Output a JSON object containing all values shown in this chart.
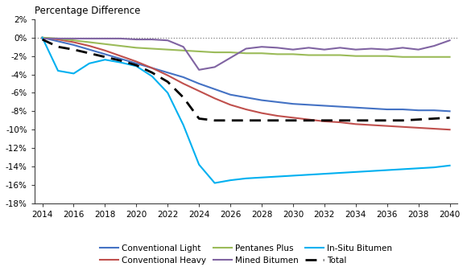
{
  "title": "Percentage Difference",
  "years": [
    2014,
    2015,
    2016,
    2017,
    2018,
    2019,
    2020,
    2021,
    2022,
    2023,
    2024,
    2025,
    2026,
    2027,
    2028,
    2029,
    2030,
    2031,
    2032,
    2033,
    2034,
    2035,
    2036,
    2037,
    2038,
    2039,
    2040
  ],
  "conventional_light": [
    0,
    -0.4,
    -0.8,
    -1.3,
    -1.8,
    -2.3,
    -2.8,
    -3.3,
    -3.8,
    -4.3,
    -5.0,
    -5.6,
    -6.2,
    -6.5,
    -6.8,
    -7.0,
    -7.2,
    -7.3,
    -7.4,
    -7.5,
    -7.6,
    -7.7,
    -7.8,
    -7.8,
    -7.9,
    -7.9,
    -8.0
  ],
  "conventional_heavy": [
    0,
    -0.2,
    -0.5,
    -0.9,
    -1.4,
    -2.0,
    -2.6,
    -3.3,
    -4.1,
    -5.0,
    -5.8,
    -6.6,
    -7.3,
    -7.8,
    -8.2,
    -8.5,
    -8.7,
    -8.9,
    -9.1,
    -9.2,
    -9.4,
    -9.5,
    -9.6,
    -9.7,
    -9.8,
    -9.9,
    -10.0
  ],
  "pentanes_plus": [
    0,
    -0.1,
    -0.3,
    -0.5,
    -0.7,
    -0.9,
    -1.1,
    -1.2,
    -1.3,
    -1.4,
    -1.5,
    -1.6,
    -1.6,
    -1.7,
    -1.7,
    -1.8,
    -1.8,
    -1.9,
    -1.9,
    -1.9,
    -2.0,
    -2.0,
    -2.0,
    -2.1,
    -2.1,
    -2.1,
    -2.1
  ],
  "mined_bitumen": [
    -0.1,
    -0.1,
    -0.1,
    -0.1,
    -0.1,
    -0.1,
    -0.2,
    -0.2,
    -0.3,
    -1.0,
    -3.5,
    -3.2,
    -2.2,
    -1.2,
    -1.0,
    -1.1,
    -1.3,
    -1.1,
    -1.3,
    -1.1,
    -1.3,
    -1.2,
    -1.3,
    -1.1,
    -1.3,
    -0.9,
    -0.3
  ],
  "insitu_bitumen": [
    0,
    -3.6,
    -3.9,
    -2.8,
    -2.4,
    -2.7,
    -3.1,
    -4.2,
    -6.0,
    -9.5,
    -13.8,
    -15.8,
    -15.5,
    -15.3,
    -15.2,
    -15.1,
    -15.0,
    -14.9,
    -14.8,
    -14.7,
    -14.6,
    -14.5,
    -14.4,
    -14.3,
    -14.2,
    -14.1,
    -13.9
  ],
  "total": [
    -0.2,
    -1.0,
    -1.3,
    -1.7,
    -2.1,
    -2.5,
    -3.0,
    -3.8,
    -4.8,
    -6.5,
    -8.8,
    -9.0,
    -9.0,
    -9.0,
    -9.0,
    -9.0,
    -9.0,
    -9.0,
    -9.0,
    -9.0,
    -9.0,
    -9.0,
    -9.0,
    -9.0,
    -8.9,
    -8.8,
    -8.7
  ],
  "colors": {
    "conventional_light": "#4472C4",
    "conventional_heavy": "#C0504D",
    "pentanes_plus": "#9BBB59",
    "mined_bitumen": "#8064A2",
    "insitu_bitumen": "#00B0F0",
    "total": "#000000",
    "zero_line": "#808080"
  },
  "ylim": [
    -18,
    2
  ],
  "yticks": [
    2,
    0,
    -2,
    -4,
    -6,
    -8,
    -10,
    -12,
    -14,
    -16,
    -18
  ],
  "xticks": [
    2014,
    2016,
    2018,
    2020,
    2022,
    2024,
    2026,
    2028,
    2030,
    2032,
    2034,
    2036,
    2038,
    2040
  ]
}
